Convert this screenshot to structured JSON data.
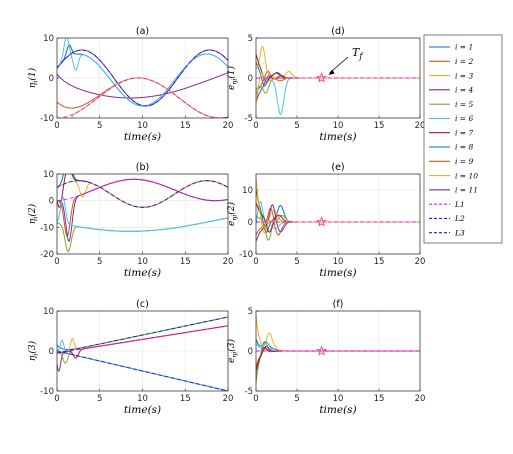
{
  "chart_data": [
    {
      "id": "a",
      "title": "(a)",
      "type": "line",
      "xlabel": "time(s)",
      "ylabel": "η_i(1)",
      "xlim": [
        0,
        20
      ],
      "ylim": [
        -10,
        10
      ],
      "xticks": [
        "0",
        "5",
        "10",
        "15",
        "20"
      ],
      "yticks": [
        "10",
        "0",
        "-10"
      ],
      "grid": true
    },
    {
      "id": "b",
      "title": "(b)",
      "type": "line",
      "xlabel": "time(s)",
      "ylabel": "η_i(2)",
      "xlim": [
        0,
        20
      ],
      "ylim": [
        -20,
        10
      ],
      "xticks": [
        "0",
        "5",
        "10",
        "15",
        "20"
      ],
      "yticks": [
        "10",
        "0",
        "-10",
        "-20"
      ],
      "grid": true
    },
    {
      "id": "c",
      "title": "(c)",
      "type": "line",
      "xlabel": "time(s)",
      "ylabel": "η_i(3)",
      "xlim": [
        0,
        20
      ],
      "ylim": [
        -10,
        10
      ],
      "xticks": [
        "0",
        "5",
        "10",
        "15",
        "20"
      ],
      "yticks": [
        "10",
        "0",
        "-10"
      ],
      "grid": true
    },
    {
      "id": "d",
      "title": "(d)",
      "type": "line",
      "xlabel": "time(s)",
      "ylabel": "e_ηi(1)",
      "xlim": [
        0,
        20
      ],
      "ylim": [
        -5,
        5
      ],
      "xticks": [
        "0",
        "5",
        "10",
        "15",
        "20"
      ],
      "yticks": [
        "5",
        "0",
        "-5"
      ],
      "grid": true,
      "annotation": {
        "label": "T_f",
        "x": 8,
        "y": 0,
        "marker": "star"
      }
    },
    {
      "id": "e",
      "title": "(e)",
      "type": "line",
      "xlabel": "time(s)",
      "ylabel": "e_ηi(2)",
      "xlim": [
        0,
        20
      ],
      "ylim": [
        -10,
        15
      ],
      "xticks": [
        "0",
        "5",
        "10",
        "15",
        "20"
      ],
      "yticks": [
        "10",
        "0",
        "-10"
      ],
      "grid": true,
      "annotation": {
        "x": 8,
        "y": 0,
        "marker": "star"
      }
    },
    {
      "id": "f",
      "title": "(f)",
      "type": "line",
      "xlabel": "time(s)",
      "ylabel": "e_ηi(3)",
      "xlim": [
        0,
        20
      ],
      "ylim": [
        -5,
        5
      ],
      "xticks": [
        "0",
        "5",
        "10",
        "15",
        "20"
      ],
      "yticks": [
        "5",
        "0",
        "-5"
      ],
      "grid": true,
      "annotation": {
        "x": 8,
        "y": 0,
        "marker": "star"
      }
    }
  ],
  "legend": {
    "position": "right",
    "entries": [
      {
        "label": "i = 1",
        "color": "#0072BD",
        "dash": false
      },
      {
        "label": "i = 2",
        "color": "#D95319",
        "dash": false
      },
      {
        "label": "i = 3",
        "color": "#EDB120",
        "dash": false
      },
      {
        "label": "i = 4",
        "color": "#7E2F8E",
        "dash": false
      },
      {
        "label": "i = 5",
        "color": "#77AC30",
        "dash": false
      },
      {
        "label": "i = 6",
        "color": "#4DBEEE",
        "dash": false
      },
      {
        "label": "i = 7",
        "color": "#A2142F",
        "dash": false
      },
      {
        "label": "i = 8",
        "color": "#0072BD",
        "dash": false
      },
      {
        "label": "i = 9",
        "color": "#D95319",
        "dash": false
      },
      {
        "label": "i = 10",
        "color": "#EDB120",
        "dash": false
      },
      {
        "label": "i = 11",
        "color": "#7E2F8E",
        "dash": false
      },
      {
        "label": "L1",
        "color": "#E619E6",
        "dash": true
      },
      {
        "label": "L2",
        "color": "#1A1AE6",
        "dash": true
      },
      {
        "label": "L3",
        "color": "#1A1AE6",
        "dash": true
      }
    ]
  }
}
